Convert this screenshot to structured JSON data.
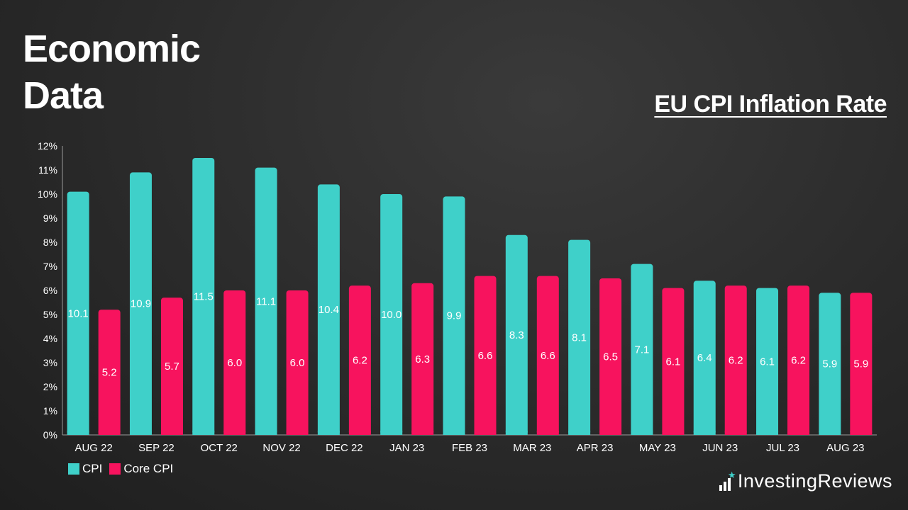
{
  "header": {
    "title_line1": "Economic",
    "title_line2": "Data",
    "subtitle": "EU CPI Inflation Rate"
  },
  "brand": {
    "name_part1": "Investing",
    "name_part2": "Reviews",
    "icon": "bar-chart-star-icon"
  },
  "legend": {
    "items": [
      {
        "label": "CPI",
        "color": "#3fd0c9"
      },
      {
        "label": "Core CPI",
        "color": "#f7135e"
      }
    ]
  },
  "chart_data": {
    "type": "bar",
    "categories": [
      "AUG 22",
      "SEP 22",
      "OCT 22",
      "NOV 22",
      "DEC 22",
      "JAN 23",
      "FEB 23",
      "MAR 23",
      "APR 23",
      "MAY 23",
      "JUN 23",
      "JUL 23",
      "AUG 23"
    ],
    "series": [
      {
        "name": "CPI",
        "color": "#3fd0c9",
        "values": [
          10.1,
          10.9,
          11.5,
          11.1,
          10.4,
          10.0,
          9.9,
          8.3,
          8.1,
          7.1,
          6.4,
          6.1,
          5.9
        ],
        "labels": [
          "10.1",
          "10.9",
          "11.5",
          "11.1",
          "10.4",
          "10.0",
          "9.9",
          "8.3",
          "8.1",
          "7.1",
          "6.4",
          "6.1",
          "5.9"
        ]
      },
      {
        "name": "Core CPI",
        "color": "#f7135e",
        "values": [
          5.2,
          5.7,
          6.0,
          6.0,
          6.2,
          6.3,
          6.6,
          6.6,
          6.5,
          6.1,
          6.2,
          6.2,
          5.9
        ],
        "labels": [
          "5.2",
          "5.7",
          "6.0",
          "6.0",
          "6.2",
          "6.3",
          "6.6",
          "6.6",
          "6.5",
          "6.1",
          "6.2",
          "6.2",
          "5.9"
        ]
      }
    ],
    "y_ticks": [
      "0%",
      "1%",
      "2%",
      "3%",
      "4%",
      "5%",
      "6%",
      "7%",
      "8%",
      "9%",
      "10%",
      "11%",
      "12%"
    ],
    "ylim": [
      0,
      12
    ],
    "grid": false,
    "legend_position": "bottom-left"
  }
}
